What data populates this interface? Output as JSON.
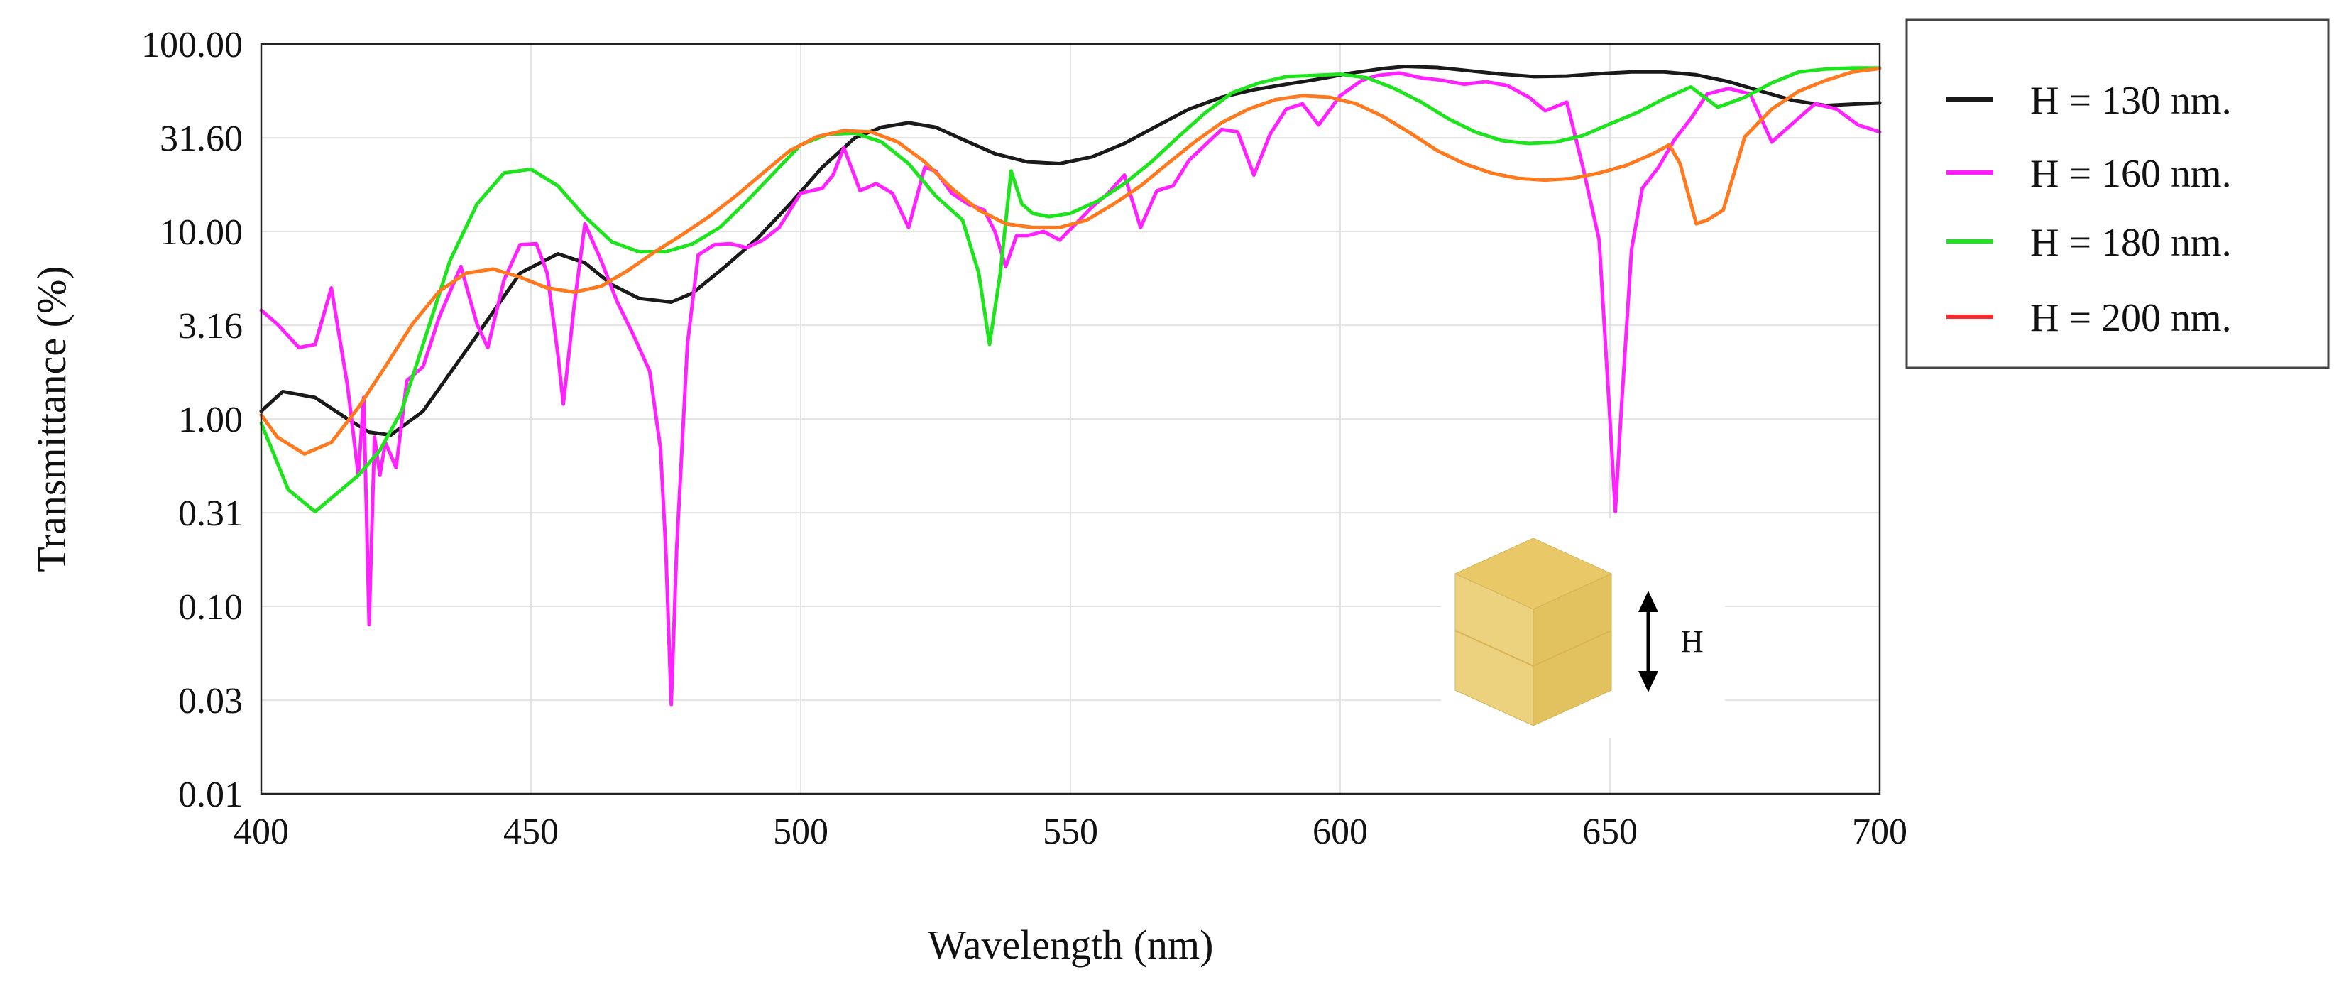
{
  "chart_data": {
    "type": "line",
    "title": "",
    "xlabel": "Wavelength (nm)",
    "ylabel": "Transmittance (%)",
    "xlim": [
      400,
      700
    ],
    "ylim": [
      0.01,
      100
    ],
    "yscale": "log",
    "grid": true,
    "x_ticks": [
      400,
      450,
      500,
      550,
      600,
      650,
      700
    ],
    "x_tick_labels": [
      "400",
      "450",
      "500",
      "550",
      "600",
      "650",
      "700"
    ],
    "y_ticks": [
      0.01,
      0.0316,
      0.1,
      0.316,
      1,
      3.16,
      10,
      31.6,
      100
    ],
    "y_tick_labels": [
      "0.01",
      "0.03",
      "0.10",
      "0.31",
      "1.00",
      "3.16",
      "10.00",
      "31.60",
      "100.00"
    ],
    "legend_position": "outside-right-top",
    "series": [
      {
        "name": "H = 130 nm.",
        "color": "#1a1a1a",
        "x": [
          400,
          404,
          410,
          416,
          420,
          424,
          430,
          440,
          448,
          455,
          460,
          465,
          470,
          476,
          480,
          486,
          492,
          498,
          504,
          510,
          515,
          520,
          525,
          530,
          536,
          542,
          548,
          554,
          560,
          566,
          572,
          578,
          584,
          590,
          596,
          602,
          608,
          612,
          618,
          624,
          630,
          636,
          642,
          648,
          654,
          660,
          666,
          672,
          678,
          684,
          690,
          696,
          700
        ],
        "y": [
          1.1,
          1.4,
          1.3,
          1.0,
          0.85,
          0.82,
          1.1,
          2.8,
          6.0,
          7.6,
          6.8,
          5.2,
          4.4,
          4.2,
          4.7,
          6.5,
          9.2,
          14.0,
          22.0,
          31.5,
          36.0,
          38.0,
          36.0,
          31.0,
          26.0,
          23.5,
          23.0,
          25.0,
          29.5,
          36.5,
          45.0,
          52.0,
          57.0,
          61.0,
          65.0,
          70.0,
          74.0,
          76.0,
          75.0,
          72.0,
          69.0,
          67.0,
          67.5,
          69.5,
          71.0,
          71.0,
          68.5,
          63.0,
          56.0,
          50.0,
          47.0,
          48.0,
          48.5
        ]
      },
      {
        "name": "H = 160 nm.",
        "color": "#ff22ff",
        "x": [
          400,
          403,
          407,
          410,
          413,
          416,
          418,
          419,
          420,
          421,
          422,
          423,
          425,
          427,
          430,
          433,
          437,
          440,
          442,
          445,
          448,
          451,
          453,
          455,
          456,
          458,
          460,
          463,
          466,
          469,
          472,
          474,
          475,
          476,
          477,
          479,
          481,
          484,
          487,
          490,
          493,
          496,
          500,
          504,
          506,
          508,
          511,
          514,
          517,
          520,
          523,
          525,
          528,
          531,
          534,
          536,
          538,
          540,
          542,
          545,
          548,
          551,
          554,
          557,
          560,
          563,
          566,
          569,
          572,
          575,
          578,
          581,
          584,
          587,
          590,
          593,
          596,
          600,
          604,
          607,
          611,
          615,
          619,
          623,
          627,
          631,
          635,
          638,
          642,
          645,
          648,
          650,
          651,
          652,
          654,
          656,
          659,
          662,
          665,
          668,
          672,
          676,
          680,
          684,
          688,
          692,
          696,
          700
        ],
        "y": [
          3.8,
          3.2,
          2.4,
          2.5,
          5.0,
          1.5,
          0.5,
          1.3,
          0.08,
          0.8,
          0.5,
          0.75,
          0.55,
          1.6,
          1.9,
          3.5,
          6.5,
          3.2,
          2.4,
          5.5,
          8.5,
          8.6,
          6.0,
          2.2,
          1.2,
          4.0,
          11.0,
          7.0,
          4.2,
          2.8,
          1.8,
          0.7,
          0.2,
          0.03,
          0.2,
          2.5,
          7.5,
          8.5,
          8.6,
          8.2,
          9.0,
          10.5,
          16.0,
          17.0,
          20.0,
          28.0,
          16.5,
          18.0,
          16.0,
          10.5,
          22.0,
          21.0,
          16.0,
          14.0,
          13.0,
          10.0,
          6.5,
          9.5,
          9.5,
          10.0,
          9.0,
          11.0,
          13.5,
          16.0,
          20.0,
          10.5,
          16.5,
          17.5,
          24.0,
          29.0,
          35.0,
          34.0,
          20.0,
          33.0,
          45.0,
          48.0,
          37.0,
          53.0,
          64.0,
          68.0,
          70.0,
          66.0,
          64.0,
          61.0,
          63.0,
          60.0,
          52.0,
          44.0,
          49.0,
          22.0,
          9.0,
          1.0,
          0.32,
          1.0,
          8.0,
          17.0,
          22.0,
          31.0,
          40.0,
          54.0,
          58.0,
          54.0,
          30.0,
          38.0,
          48.0,
          45.0,
          37.0,
          34.0
        ]
      },
      {
        "name": "H = 180 nm.",
        "color": "#1ee41e",
        "x": [
          400,
          405,
          410,
          414,
          418,
          422,
          426,
          430,
          435,
          440,
          445,
          450,
          455,
          460,
          465,
          470,
          475,
          480,
          485,
          490,
          495,
          500,
          505,
          510,
          515,
          520,
          525,
          530,
          533,
          535,
          537,
          539,
          541,
          543,
          546,
          550,
          555,
          560,
          565,
          570,
          575,
          580,
          585,
          590,
          595,
          600,
          605,
          610,
          615,
          620,
          625,
          630,
          635,
          640,
          645,
          650,
          655,
          660,
          665,
          670,
          675,
          680,
          685,
          690,
          695,
          700
        ],
        "y": [
          0.95,
          0.42,
          0.32,
          0.4,
          0.5,
          0.68,
          1.1,
          2.5,
          7.0,
          14.0,
          20.5,
          21.5,
          17.5,
          12.0,
          8.8,
          7.8,
          7.8,
          8.6,
          10.5,
          14.5,
          20.5,
          29.0,
          33.0,
          33.5,
          30.0,
          23.0,
          15.5,
          11.5,
          6.0,
          2.5,
          6.0,
          21.0,
          14.0,
          12.5,
          12.0,
          12.5,
          14.5,
          18.0,
          23.5,
          32.0,
          43.0,
          55.0,
          62.0,
          67.0,
          68.0,
          69.0,
          66.0,
          58.0,
          49.0,
          40.0,
          34.0,
          30.5,
          29.5,
          30.0,
          32.5,
          37.5,
          43.0,
          51.0,
          59.0,
          46.0,
          52.0,
          62.0,
          71.0,
          73.5,
          74.5,
          74.5
        ]
      },
      {
        "name": "H = 200 nm.",
        "color": "#ff7a1e",
        "legend_color": "#ff2a2a",
        "x": [
          400,
          403,
          408,
          413,
          418,
          423,
          428,
          433,
          438,
          443,
          448,
          453,
          458,
          463,
          468,
          473,
          478,
          483,
          488,
          493,
          498,
          503,
          508,
          513,
          518,
          523,
          528,
          533,
          538,
          543,
          548,
          553,
          558,
          563,
          568,
          573,
          578,
          583,
          588,
          593,
          598,
          603,
          608,
          613,
          618,
          623,
          628,
          633,
          638,
          643,
          648,
          653,
          658,
          661,
          663,
          666,
          668,
          671,
          675,
          680,
          685,
          690,
          695,
          700
        ],
        "y": [
          1.05,
          0.8,
          0.65,
          0.75,
          1.15,
          1.9,
          3.2,
          4.8,
          6.0,
          6.3,
          5.7,
          5.0,
          4.75,
          5.1,
          6.2,
          7.8,
          9.6,
          12.0,
          15.5,
          20.5,
          27.0,
          32.0,
          34.5,
          34.0,
          30.0,
          23.5,
          17.0,
          13.0,
          11.0,
          10.5,
          10.5,
          11.5,
          14.0,
          17.5,
          23.0,
          30.0,
          38.0,
          45.0,
          50.5,
          53.0,
          52.0,
          48.0,
          41.0,
          33.5,
          27.0,
          23.0,
          20.5,
          19.2,
          18.8,
          19.2,
          20.5,
          22.5,
          26.0,
          29.0,
          23.0,
          11.0,
          11.5,
          13.0,
          32.0,
          45.0,
          56.0,
          64.0,
          71.0,
          74.0
        ]
      }
    ],
    "annotations": [
      {
        "type": "inset-diagram",
        "description_label": "H"
      }
    ]
  }
}
